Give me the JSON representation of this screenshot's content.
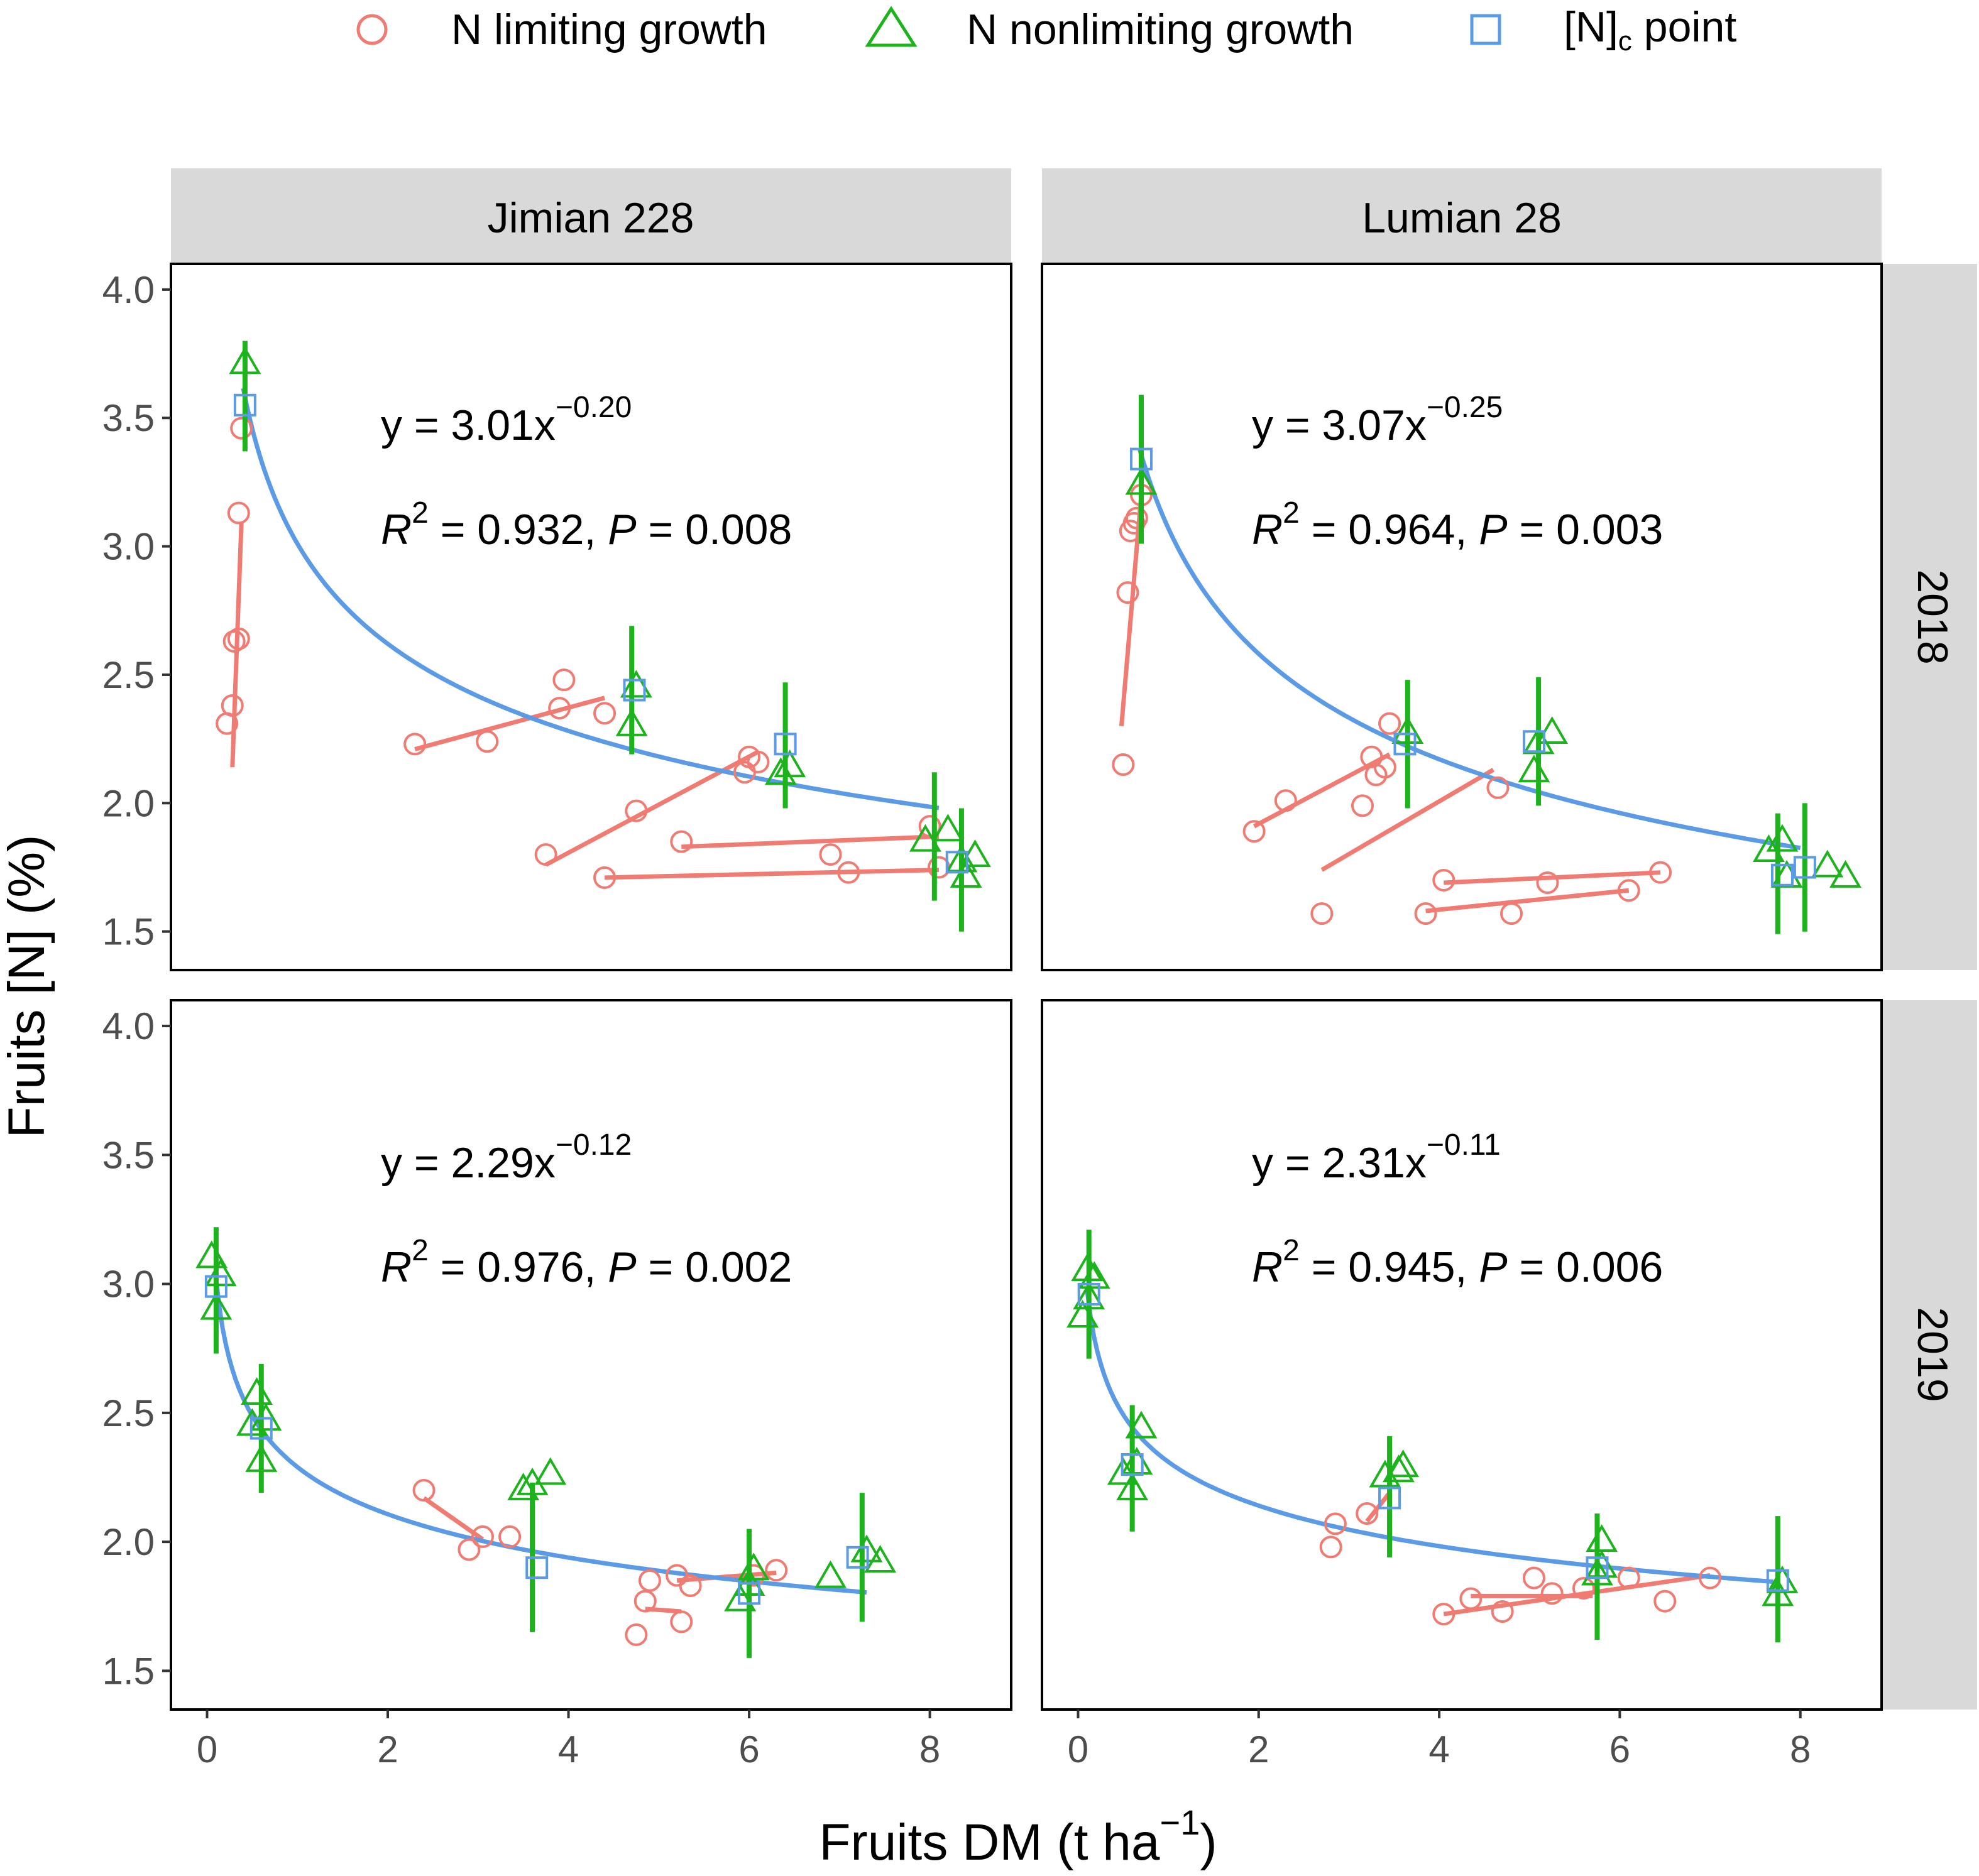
{
  "legend": {
    "items": [
      {
        "label": "N limiting growth",
        "color": "#f07b72",
        "shape": "circle-icon"
      },
      {
        "label": "N nonlimiting growth",
        "color": "#1db31d",
        "shape": "triangle-icon"
      },
      {
        "label": "[N]",
        "label_sub": "c",
        "label_tail": " point",
        "color": "#5b9be6",
        "shape": "square-icon"
      }
    ]
  },
  "axes": {
    "xlabel": "Fruits DM (t ha",
    "xlabel_sup": "−1",
    "xlabel_tail": ")",
    "ylabel": "Fruits [N] (%)",
    "xlim": [
      -0.4,
      8.9
    ],
    "ylim": [
      1.35,
      4.1
    ],
    "xticks": [
      "0",
      "2",
      "4",
      "6",
      "8"
    ],
    "xtick_values": [
      0,
      2,
      4,
      6,
      8
    ],
    "yticks": [
      "1.5",
      "2.0",
      "2.5",
      "3.0",
      "3.5",
      "4.0"
    ],
    "ytick_values": [
      1.5,
      2.0,
      2.5,
      3.0,
      3.5,
      4.0
    ]
  },
  "strips": {
    "columns": [
      "Jimian 228",
      "Lumian 28"
    ],
    "rows": [
      "2018",
      "2019"
    ]
  },
  "colors": {
    "limiting": "#f07b72",
    "nonlimiting": "#1db31d",
    "critical": "#5b9be6",
    "strip": "#d9d9d9"
  },
  "chart_data": {
    "type": "scatter",
    "title": "",
    "panels": [
      {
        "id": "jimian228-2018",
        "column": "Jimian 228",
        "row": "2018",
        "equation": {
          "prefix": "y = 3.01x",
          "exponent": "−0.20",
          "r2_label": "R",
          "r2_sup": "2",
          "r2_value": " = 0.932, ",
          "p_label": "P",
          "p_value": " = 0.008"
        },
        "curve": {
          "a": 3.01,
          "b": -0.2,
          "xrange": [
            0.4,
            8.1
          ]
        },
        "limiting": [
          [
            0.22,
            2.31
          ],
          [
            0.28,
            2.38
          ],
          [
            0.3,
            2.63
          ],
          [
            0.35,
            2.64
          ],
          [
            0.35,
            3.13
          ],
          [
            0.38,
            3.46
          ],
          [
            2.3,
            2.23
          ],
          [
            3.1,
            2.24
          ],
          [
            3.9,
            2.37
          ],
          [
            3.95,
            2.48
          ],
          [
            4.4,
            2.35
          ],
          [
            3.75,
            1.8
          ],
          [
            4.75,
            1.97
          ],
          [
            5.95,
            2.12
          ],
          [
            6.0,
            2.18
          ],
          [
            6.1,
            2.16
          ],
          [
            4.4,
            1.71
          ],
          [
            5.25,
            1.85
          ],
          [
            6.9,
            1.8
          ],
          [
            7.1,
            1.73
          ],
          [
            8.0,
            1.91
          ],
          [
            8.1,
            1.75
          ]
        ],
        "limiting_lines": [
          [
            [
              0.28,
              2.14
            ],
            [
              0.38,
              3.09
            ]
          ],
          [
            [
              2.3,
              2.21
            ],
            [
              4.4,
              2.41
            ]
          ],
          [
            [
              3.75,
              1.76
            ],
            [
              6.1,
              2.2
            ]
          ],
          [
            [
              4.4,
              1.71
            ],
            [
              8.1,
              1.74
            ]
          ],
          [
            [
              5.25,
              1.83
            ],
            [
              8.1,
              1.87
            ]
          ]
        ],
        "nonlimiting": [
          [
            0.42,
            3.71
          ],
          [
            4.7,
            2.3
          ],
          [
            4.75,
            2.45
          ],
          [
            6.35,
            2.11
          ],
          [
            6.45,
            2.14
          ],
          [
            7.95,
            1.85
          ],
          [
            8.2,
            1.89
          ],
          [
            8.35,
            1.77
          ],
          [
            8.4,
            1.71
          ],
          [
            8.5,
            1.79
          ]
        ],
        "errorbars": [
          [
            0.42,
            3.37,
            3.8
          ],
          [
            4.7,
            2.19,
            2.69
          ],
          [
            6.4,
            1.98,
            2.47
          ],
          [
            8.05,
            1.62,
            2.12
          ],
          [
            8.35,
            1.5,
            1.98
          ]
        ],
        "critical": [
          [
            0.42,
            3.55
          ],
          [
            4.73,
            2.44
          ],
          [
            6.4,
            2.23
          ],
          [
            8.3,
            1.77
          ]
        ]
      },
      {
        "id": "lumian28-2018",
        "column": "Lumian 28",
        "row": "2018",
        "equation": {
          "prefix": "y = 3.07x",
          "exponent": "−0.25",
          "r2_label": "R",
          "r2_sup": "2",
          "r2_value": " = 0.964, ",
          "p_label": "P",
          "p_value": " = 0.003"
        },
        "curve": {
          "a": 3.07,
          "b": -0.25,
          "xrange": [
            0.68,
            8.0
          ]
        },
        "limiting": [
          [
            0.5,
            2.15
          ],
          [
            0.55,
            2.82
          ],
          [
            0.58,
            3.06
          ],
          [
            0.62,
            3.09
          ],
          [
            0.65,
            3.11
          ],
          [
            0.7,
            3.2
          ],
          [
            1.95,
            1.89
          ],
          [
            2.3,
            2.01
          ],
          [
            3.15,
            1.99
          ],
          [
            3.25,
            2.18
          ],
          [
            3.3,
            2.11
          ],
          [
            3.4,
            2.14
          ],
          [
            3.45,
            2.31
          ],
          [
            4.65,
            2.06
          ],
          [
            2.7,
            1.57
          ],
          [
            4.05,
            1.7
          ],
          [
            5.2,
            1.69
          ],
          [
            6.45,
            1.73
          ],
          [
            3.85,
            1.57
          ],
          [
            4.8,
            1.57
          ],
          [
            6.1,
            1.66
          ]
        ],
        "limiting_lines": [
          [
            [
              0.48,
              2.3
            ],
            [
              0.7,
              3.2
            ]
          ],
          [
            [
              1.95,
              1.91
            ],
            [
              3.45,
              2.19
            ]
          ],
          [
            [
              2.7,
              1.74
            ],
            [
              4.6,
              2.13
            ]
          ],
          [
            [
              4.05,
              1.69
            ],
            [
              6.45,
              1.73
            ]
          ],
          [
            [
              3.85,
              1.58
            ],
            [
              6.1,
              1.66
            ]
          ]
        ],
        "nonlimiting": [
          [
            0.7,
            3.24
          ],
          [
            3.65,
            2.27
          ],
          [
            5.05,
            2.12
          ],
          [
            5.1,
            2.23
          ],
          [
            5.25,
            2.27
          ],
          [
            7.65,
            1.81
          ],
          [
            7.8,
            1.85
          ],
          [
            7.85,
            1.71
          ],
          [
            8.3,
            1.75
          ],
          [
            8.5,
            1.71
          ]
        ],
        "errorbars": [
          [
            0.7,
            3.01,
            3.59
          ],
          [
            3.65,
            1.98,
            2.48
          ],
          [
            5.1,
            1.99,
            2.49
          ],
          [
            7.75,
            1.49,
            1.96
          ],
          [
            8.05,
            1.5,
            2.0
          ]
        ],
        "critical": [
          [
            0.7,
            3.34
          ],
          [
            3.62,
            2.23
          ],
          [
            5.05,
            2.24
          ],
          [
            7.8,
            1.72
          ],
          [
            8.05,
            1.75
          ]
        ]
      },
      {
        "id": "jimian228-2019",
        "column": "Jimian 228",
        "row": "2019",
        "equation": {
          "prefix": "y = 2.29x",
          "exponent": "−0.12",
          "r2_label": "R",
          "r2_sup": "2",
          "r2_value": " = 0.976, ",
          "p_label": "P",
          "p_value": " = 0.002"
        },
        "curve": {
          "a": 2.29,
          "b": -0.12,
          "xrange": [
            0.1,
            7.3
          ]
        },
        "limiting": [
          [
            2.4,
            2.2
          ],
          [
            2.9,
            1.97
          ],
          [
            3.05,
            2.02
          ],
          [
            3.35,
            2.02
          ],
          [
            4.75,
            1.64
          ],
          [
            4.85,
            1.77
          ],
          [
            4.9,
            1.85
          ],
          [
            5.2,
            1.87
          ],
          [
            5.25,
            1.69
          ],
          [
            5.35,
            1.83
          ],
          [
            6.05,
            1.87
          ],
          [
            6.3,
            1.89
          ]
        ],
        "limiting_lines": [
          [
            [
              2.4,
              2.17
            ],
            [
              3.05,
              2.01
            ]
          ],
          [
            [
              4.85,
              1.74
            ],
            [
              5.25,
              1.73
            ]
          ],
          [
            [
              5.2,
              1.85
            ],
            [
              6.3,
              1.88
            ]
          ]
        ],
        "nonlimiting": [
          [
            0.05,
            3.1
          ],
          [
            0.1,
            2.9
          ],
          [
            0.15,
            3.03
          ],
          [
            0.5,
            2.45
          ],
          [
            0.55,
            2.57
          ],
          [
            0.6,
            2.31
          ],
          [
            0.65,
            2.47
          ],
          [
            3.5,
            2.2
          ],
          [
            3.6,
            2.22
          ],
          [
            3.8,
            2.26
          ],
          [
            5.9,
            1.77
          ],
          [
            6.0,
            1.83
          ],
          [
            6.05,
            1.89
          ],
          [
            6.9,
            1.86
          ],
          [
            7.3,
            1.96
          ],
          [
            7.45,
            1.92
          ]
        ],
        "errorbars": [
          [
            0.1,
            2.73,
            3.22
          ],
          [
            0.6,
            2.19,
            2.69
          ],
          [
            3.6,
            1.65,
            2.23
          ],
          [
            6.0,
            1.55,
            2.05
          ],
          [
            7.25,
            1.69,
            2.19
          ]
        ],
        "critical": [
          [
            0.1,
            2.99
          ],
          [
            0.6,
            2.44
          ],
          [
            3.65,
            1.9
          ],
          [
            6.0,
            1.8
          ],
          [
            7.2,
            1.94
          ]
        ]
      },
      {
        "id": "lumian28-2019",
        "column": "Lumian 28",
        "row": "2019",
        "equation": {
          "prefix": "y = 2.31x",
          "exponent": "−0.11",
          "r2_label": "R",
          "r2_sup": "2",
          "r2_value": " = 0.945, ",
          "p_label": "P",
          "p_value": " = 0.006"
        },
        "curve": {
          "a": 2.31,
          "b": -0.11,
          "xrange": [
            0.1,
            7.7
          ]
        },
        "limiting": [
          [
            2.8,
            1.98
          ],
          [
            2.85,
            2.07
          ],
          [
            3.2,
            2.11
          ],
          [
            4.05,
            1.72
          ],
          [
            4.35,
            1.78
          ],
          [
            4.7,
            1.73
          ],
          [
            5.05,
            1.86
          ],
          [
            5.25,
            1.8
          ],
          [
            5.6,
            1.82
          ],
          [
            6.1,
            1.86
          ],
          [
            6.5,
            1.77
          ],
          [
            7.0,
            1.86
          ]
        ],
        "limiting_lines": [
          [
            [
              3.2,
              2.08
            ],
            [
              3.45,
              2.19
            ]
          ],
          [
            [
              4.05,
              1.72
            ],
            [
              7.0,
              1.87
            ]
          ],
          [
            [
              4.35,
              1.79
            ],
            [
              5.7,
              1.79
            ]
          ]
        ],
        "nonlimiting": [
          [
            0.05,
            2.87
          ],
          [
            0.1,
            3.05
          ],
          [
            0.12,
            2.94
          ],
          [
            0.18,
            3.02
          ],
          [
            0.5,
            2.26
          ],
          [
            0.6,
            2.2
          ],
          [
            0.65,
            2.3
          ],
          [
            0.7,
            2.44
          ],
          [
            3.4,
            2.25
          ],
          [
            3.55,
            2.27
          ],
          [
            3.6,
            2.29
          ],
          [
            5.75,
            1.87
          ],
          [
            5.8,
            1.9
          ],
          [
            5.8,
            2.0
          ],
          [
            7.75,
            1.79
          ],
          [
            7.8,
            1.84
          ]
        ],
        "errorbars": [
          [
            0.12,
            2.71,
            3.21
          ],
          [
            0.6,
            2.04,
            2.53
          ],
          [
            3.45,
            1.94,
            2.41
          ],
          [
            5.75,
            1.62,
            2.11
          ],
          [
            7.75,
            1.61,
            2.1
          ]
        ],
        "critical": [
          [
            0.12,
            2.96
          ],
          [
            0.6,
            2.3
          ],
          [
            3.45,
            2.17
          ],
          [
            5.75,
            1.9
          ],
          [
            7.75,
            1.85
          ]
        ]
      }
    ]
  }
}
